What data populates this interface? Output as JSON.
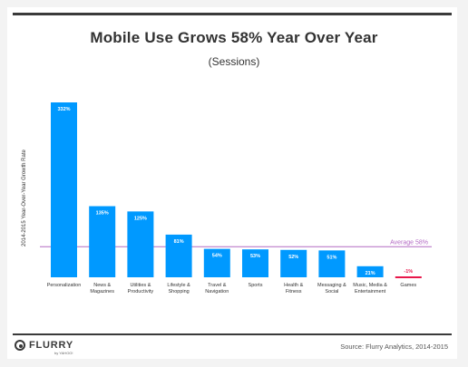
{
  "chart_data": {
    "type": "bar",
    "title": "Mobile Use Grows 58% Year Over Year",
    "subtitle": "(Sessions)",
    "ylabel": "2014-2015 Year-Over-Year Growth Rate",
    "categories": [
      [
        "Personalization"
      ],
      [
        "News &",
        "Magazines"
      ],
      [
        "Utilities &",
        "Productivity"
      ],
      [
        "Lifestyle &",
        "Shopping"
      ],
      [
        "Travel &",
        "Navigation"
      ],
      [
        "Sports"
      ],
      [
        "Health &",
        "Fitness"
      ],
      [
        "Messaging &",
        "Social"
      ],
      [
        "Music, Media &",
        "Entertainment"
      ],
      [
        "Games"
      ]
    ],
    "values": [
      332,
      135,
      125,
      81,
      54,
      53,
      52,
      51,
      21,
      -1
    ],
    "value_labels": [
      "332%",
      "135%",
      "125%",
      "81%",
      "54%",
      "53%",
      "52%",
      "51%",
      "21%",
      "-1%"
    ],
    "average": {
      "value": 58,
      "label": "Average 58%"
    },
    "ylim": [
      0,
      332
    ],
    "grid": false,
    "colors": {
      "bar": "#0099ff",
      "negative_bar": "#e8174a",
      "negative_label": "#e8174a",
      "average_line": "#b36ac4",
      "value_label": "#ffffff"
    }
  },
  "footer": {
    "logo": "FLURRY",
    "logo_sub": "by YAHOO!",
    "source": "Source: Flurry Analytics, 2014-2015"
  }
}
